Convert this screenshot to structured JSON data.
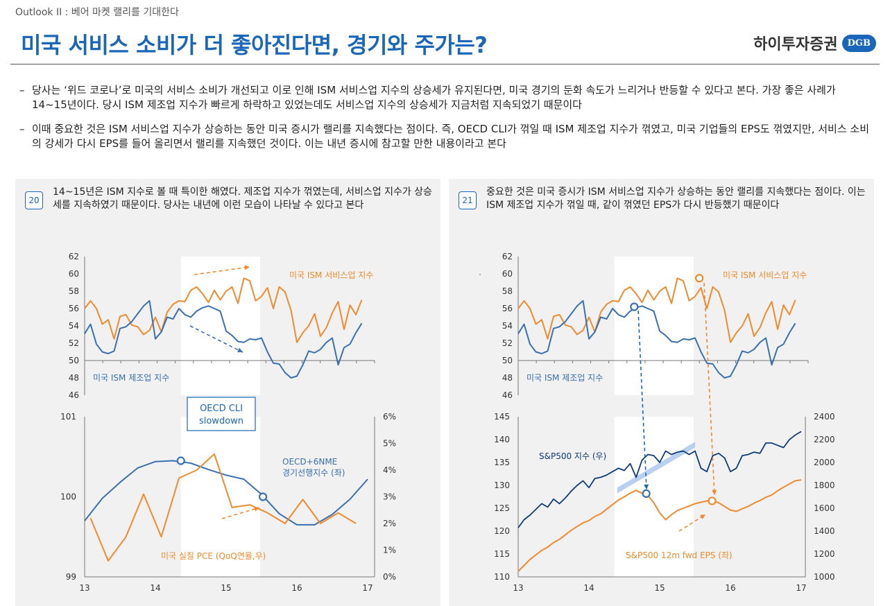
{
  "header": {
    "kicker": "Outlook II : 베어 마켓 랠리를 기대한다",
    "title": "미국 서비스 소비가 더 좋아진다면, 경기와 주가는?",
    "logo_text": "하이투자증권",
    "logo_badge": "DGB"
  },
  "bullets": [
    "당사는 ‘위드 코로나’로 미국의 서비스 소비가 개선되고 이로 인해 ISM 서비스업 지수의 상승세가 유지된다면, 미국 경기의 둔화 속도가 느리거나 반등할 수 있다고 본다. 가장 좋은 사례가 14~15년이다. 당시 ISM 제조업 지수가 빠르게 하락하고 있었는데도 서비스업 지수의 상승세가 지금처럼 지속되었기 때문이다",
    "이때 중요한 것은 ISM 서비스업 지수가 상승하는 동안 미국 증시가 랠리를 지속했다는 점이다. 즉, OECD CLI가 꺾일 때 ISM 제조업 지수가 꺾였고, 미국 기업들의 EPS도 꺾였지만, 서비스 소비의 강세가 다시 EPS를 들어 올리면서 랠리를 지속했던 것이다. 이는 내년 증시에 참고할 만한 내용이라고 본다"
  ],
  "bullet_dash": "–",
  "colors": {
    "blue": "#3a6fb0",
    "orange": "#f08a2c",
    "navy": "#0d3a78",
    "accent": "#1a66b8"
  },
  "figures": [
    {
      "number": "20",
      "caption": "14~15년은 ISM 지수로 볼 때 특이한 해였다. 제조업 지수가 꺾였는데, 서비스업 지수가 상승세를 지속하였기 때문이다. 당사는 내년에 이런 모습이 나타날 수 있다고 본다"
    },
    {
      "number": "21",
      "caption": "중요한 것은 미국 증시가 ISM 서비스업 지수가 상승하는 동안 랠리를 지속했다는 점이다. 이는 ISM 제조업 지수가 꺾일 때, 같이 꺾였던 EPS가 다시 반등했기 때문이다"
    }
  ],
  "chart_data": [
    {
      "type": "line",
      "panel": "left-top",
      "x": [
        2013.0,
        2013.083,
        2013.167,
        2013.25,
        2013.333,
        2013.417,
        2013.5,
        2013.583,
        2013.667,
        2013.75,
        2013.833,
        2013.917,
        2014.0,
        2014.083,
        2014.167,
        2014.25,
        2014.333,
        2014.417,
        2014.5,
        2014.583,
        2014.667,
        2014.75,
        2014.833,
        2014.917,
        2015.0,
        2015.083,
        2015.167,
        2015.25,
        2015.333,
        2015.417,
        2015.5,
        2015.583,
        2015.667,
        2015.75,
        2015.833,
        2015.917,
        2016.0,
        2016.083,
        2016.167,
        2016.25,
        2016.333,
        2016.417,
        2016.5,
        2016.583,
        2016.667,
        2016.75,
        2016.833,
        2016.917
      ],
      "series": [
        {
          "name": "미국 ISM 서비스업 지수",
          "color": "#f08a2c",
          "values": [
            56,
            56.9,
            56,
            54.2,
            54.7,
            52.5,
            55.1,
            55.3,
            54.1,
            53.9,
            53.0,
            53.5,
            55.0,
            53.3,
            55.6,
            56.5,
            56.9,
            56.8,
            58.1,
            58.5,
            57.7,
            56.7,
            58.1,
            57.0,
            58.0,
            58.5,
            56.6,
            59.5,
            59.2,
            56.9,
            57.4,
            58.4,
            56.0,
            58.5,
            57.9,
            55.8,
            52.1,
            53.2,
            54.0,
            55.4,
            52.8,
            53.8,
            55.5,
            56.8,
            53.6,
            56.4,
            55.3,
            57.0
          ]
        },
        {
          "name": "미국 ISM 제조업 지수",
          "color": "#3a6fb0",
          "values": [
            53.1,
            54.2,
            51.9,
            51.0,
            50.8,
            51.1,
            53.7,
            53.9,
            54.5,
            55.4,
            56.3,
            56.9,
            52.5,
            53.3,
            55.0,
            54.8,
            56.0,
            55.3,
            55.0,
            55.7,
            56.1,
            56.3,
            56.0,
            55.7,
            53.4,
            52.9,
            52.2,
            52.1,
            52.5,
            52.4,
            52.6,
            51.0,
            49.7,
            49.6,
            48.6,
            48.0,
            48.2,
            49.5,
            51.1,
            50.9,
            51.3,
            52.1,
            52.6,
            49.5,
            51.5,
            51.9,
            53.2,
            54.3
          ]
        }
      ],
      "ylim": [
        46,
        62
      ],
      "yticks": [
        "62",
        "60",
        "58",
        "56",
        "54",
        "52",
        "50",
        "48",
        "46"
      ],
      "highlight_x": [
        2014.36,
        2015.48
      ]
    },
    {
      "type": "line",
      "panel": "left-bottom",
      "xticks": [
        "13",
        "14",
        "15",
        "16",
        "17"
      ],
      "x_oecd": [
        2013.0,
        2013.25,
        2013.5,
        2013.75,
        2014.0,
        2014.25,
        2014.5,
        2014.75,
        2015.0,
        2015.25,
        2015.5,
        2015.75,
        2016.0,
        2016.25,
        2016.5,
        2016.75,
        2017.0
      ],
      "series": [
        {
          "name": "OECD+6NME 경기선행지수 (좌)",
          "color": "#3a6fb0",
          "values": [
            99.7,
            99.98,
            100.18,
            100.36,
            100.44,
            100.45,
            100.42,
            100.34,
            100.27,
            100.22,
            100.03,
            99.79,
            99.65,
            99.65,
            99.78,
            99.97,
            100.22
          ]
        },
        {
          "name": "미국 실질 PCE (QoQ연율,우)",
          "color": "#f08a2c",
          "x": [
            2013.083,
            2013.333,
            2013.583,
            2013.833,
            2014.083,
            2014.333,
            2014.583,
            2014.833,
            2015.083,
            2015.333,
            2015.583,
            2015.833,
            2016.083,
            2016.333,
            2016.583,
            2016.833
          ],
          "values": [
            2.2,
            0.6,
            1.5,
            3.1,
            1.5,
            3.7,
            4.0,
            4.6,
            2.6,
            2.7,
            2.4,
            2.0,
            2.9,
            2.0,
            2.4,
            2.0
          ]
        }
      ],
      "ylim_left": [
        99,
        101
      ],
      "yticks_left": [
        "101",
        "100",
        "99"
      ],
      "ylim_right": [
        0,
        6
      ],
      "yticks_right": [
        "6%",
        "5%",
        "4%",
        "3%",
        "2%",
        "1%",
        "0%"
      ],
      "annotation": "OECD CLI slowdown",
      "highlight_x": [
        2014.36,
        2015.48
      ]
    },
    {
      "type": "line",
      "panel": "right-top",
      "series_ref": "same as left-top",
      "ylim": [
        46,
        62
      ],
      "yticks": [
        "62",
        "60",
        "58",
        "56",
        "54",
        "52",
        "50",
        "48",
        "46"
      ],
      "highlight_x": [
        2014.36,
        2015.48
      ]
    },
    {
      "type": "line",
      "panel": "right-bottom",
      "xticks": [
        "13",
        "14",
        "15",
        "16",
        "17"
      ],
      "x": [
        2013.0,
        2013.083,
        2013.167,
        2013.25,
        2013.333,
        2013.417,
        2013.5,
        2013.583,
        2013.667,
        2013.75,
        2013.833,
        2013.917,
        2014.0,
        2014.083,
        2014.167,
        2014.25,
        2014.333,
        2014.417,
        2014.5,
        2014.583,
        2014.667,
        2014.75,
        2014.833,
        2014.917,
        2015.0,
        2015.083,
        2015.167,
        2015.25,
        2015.333,
        2015.417,
        2015.5,
        2015.583,
        2015.667,
        2015.75,
        2015.833,
        2015.917,
        2016.0,
        2016.083,
        2016.167,
        2016.25,
        2016.333,
        2016.417,
        2016.5,
        2016.583,
        2016.667,
        2016.75,
        2016.833,
        2016.917,
        2017.0
      ],
      "series": [
        {
          "name": "S&P500 지수 (우)",
          "color": "#0d3a78",
          "values": [
            1430,
            1500,
            1540,
            1590,
            1640,
            1610,
            1680,
            1640,
            1690,
            1750,
            1800,
            1840,
            1780,
            1860,
            1870,
            1890,
            1920,
            1950,
            1930,
            1990,
            1870,
            2020,
            2070,
            2060,
            2000,
            2100,
            2070,
            2090,
            2100,
            2070,
            2100,
            1950,
            1920,
            2060,
            2080,
            2040,
            1920,
            1950,
            2060,
            2070,
            2090,
            2080,
            2170,
            2170,
            2150,
            2130,
            2200,
            2240,
            2270
          ]
        },
        {
          "name": "S&P500 12m fwd EPS (좌)",
          "color": "#f08a2c",
          "values": [
            111.2,
            112.5,
            113.8,
            114.8,
            115.8,
            116.5,
            117.5,
            118.2,
            119.2,
            120.2,
            121.0,
            121.8,
            122.3,
            123.2,
            123.8,
            124.8,
            125.8,
            126.8,
            127.5,
            128.3,
            128.9,
            128.3,
            127.8,
            126.2,
            124.0,
            122.5,
            123.6,
            124.5,
            125.0,
            125.5,
            126.0,
            126.3,
            126.6,
            126.7,
            126.2,
            125.4,
            124.6,
            124.3,
            124.9,
            125.4,
            126.1,
            126.7,
            127.4,
            127.9,
            128.8,
            129.6,
            130.3,
            131.0,
            131.2
          ]
        }
      ],
      "ylim_left": [
        110,
        145
      ],
      "yticks_left": [
        "145",
        "140",
        "135",
        "130",
        "125",
        "120",
        "115",
        "110"
      ],
      "ylim_right": [
        1000,
        2400
      ],
      "yticks_right": [
        "2400",
        "2200",
        "2000",
        "1800",
        "1600",
        "1400",
        "1200",
        "1000"
      ],
      "highlight_x": [
        2014.36,
        2015.48
      ]
    }
  ]
}
